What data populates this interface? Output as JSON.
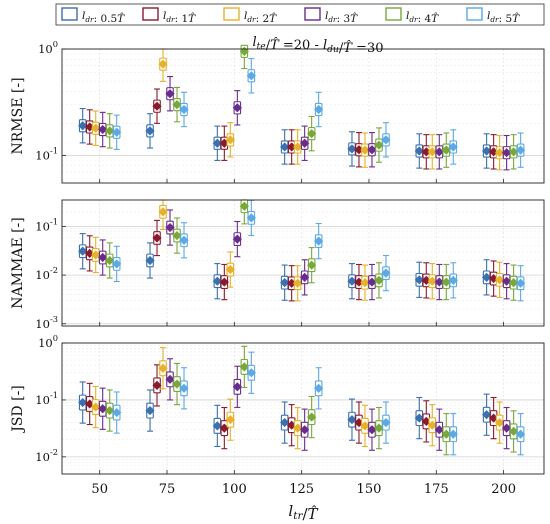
{
  "chart_data": {
    "type": "box",
    "title": "l_te/T̂ =20 - l_du/T̂ =30",
    "xlabel": "l_tr/T̂",
    "xticks": [
      "50",
      "75",
      "100",
      "125",
      "150",
      "175",
      "200"
    ],
    "x_values": [
      50,
      75,
      100,
      125,
      150,
      175,
      200
    ],
    "legend": {
      "placement": "top",
      "entries": [
        {
          "label": "l_dr: 0.5T̂",
          "color": "#3a6fb0"
        },
        {
          "label": "l_dr: 1T̂",
          "color": "#8b1a2e"
        },
        {
          "label": "l_dr: 2T̂",
          "color": "#e7b12a"
        },
        {
          "label": "l_dr: 3T̂",
          "color": "#6a2c8c"
        },
        {
          "label": "l_dr: 4T̂",
          "color": "#78a83a"
        },
        {
          "label": "l_dr: 5T̂",
          "color": "#5ca9e6"
        }
      ]
    },
    "log_scale_y": true,
    "grid": true,
    "panels": [
      {
        "ylabel": "NRMSE [-]",
        "ylim": [
          0.055,
          1.0
        ],
        "yticks": [
          {
            "v": 0.1,
            "label": "10^-1"
          },
          {
            "v": 1,
            "label": "10^0"
          }
        ],
        "series": [
          {
            "name": "l_dr: 0.5T̂",
            "medians": [
              0.19,
              0.17,
              0.13,
              0.12,
              0.115,
              0.11,
              0.11
            ]
          },
          {
            "name": "l_dr: 1T̂",
            "medians": [
              0.185,
              0.29,
              0.13,
              0.12,
              0.113,
              0.108,
              0.108
            ]
          },
          {
            "name": "l_dr: 2T̂",
            "medians": [
              0.18,
              0.72,
              0.14,
              0.12,
              0.112,
              0.108,
              0.106
            ]
          },
          {
            "name": "l_dr: 3T̂",
            "medians": [
              0.175,
              0.38,
              0.28,
              0.13,
              0.113,
              0.108,
              0.106
            ]
          },
          {
            "name": "l_dr: 4T̂",
            "medians": [
              0.17,
              0.3,
              0.95,
              0.16,
              0.125,
              0.112,
              0.108
            ]
          },
          {
            "name": "l_dr: 5T̂",
            "medians": [
              0.165,
              0.27,
              0.56,
              0.27,
              0.14,
              0.12,
              0.112
            ]
          }
        ]
      },
      {
        "ylabel": "NAMMAE [-]",
        "ylim": [
          0.0009,
          0.35
        ],
        "yticks": [
          {
            "v": 0.001,
            "label": "10^-3"
          },
          {
            "v": 0.01,
            "label": "10^-2"
          },
          {
            "v": 0.1,
            "label": "10^-1"
          }
        ],
        "series": [
          {
            "name": "l_dr: 0.5T̂",
            "medians": [
              0.031,
              0.02,
              0.0075,
              0.007,
              0.0075,
              0.008,
              0.009
            ]
          },
          {
            "name": "l_dr: 1T̂",
            "medians": [
              0.028,
              0.058,
              0.0072,
              0.0068,
              0.0072,
              0.0078,
              0.0085
            ]
          },
          {
            "name": "l_dr: 2T̂",
            "medians": [
              0.026,
              0.2,
              0.013,
              0.0068,
              0.007,
              0.0075,
              0.008
            ]
          },
          {
            "name": "l_dr: 3T̂",
            "medians": [
              0.023,
              0.095,
              0.055,
              0.009,
              0.0072,
              0.0072,
              0.0075
            ]
          },
          {
            "name": "l_dr: 4T̂",
            "medians": [
              0.02,
              0.065,
              0.26,
              0.016,
              0.0078,
              0.0072,
              0.007
            ]
          },
          {
            "name": "l_dr: 5T̂",
            "medians": [
              0.017,
              0.052,
              0.15,
              0.05,
              0.011,
              0.0078,
              0.0068
            ]
          }
        ]
      },
      {
        "ylabel": "JSD [-]",
        "ylim": [
          0.005,
          1.0
        ],
        "yticks": [
          {
            "v": 0.01,
            "label": "10^-2"
          },
          {
            "v": 0.1,
            "label": "10^-1"
          },
          {
            "v": 1,
            "label": "10^0"
          }
        ],
        "series": [
          {
            "name": "l_dr: 0.5T̂",
            "medians": [
              0.09,
              0.065,
              0.035,
              0.04,
              0.045,
              0.048,
              0.055
            ]
          },
          {
            "name": "l_dr: 1T̂",
            "medians": [
              0.085,
              0.18,
              0.032,
              0.036,
              0.04,
              0.042,
              0.048
            ]
          },
          {
            "name": "l_dr: 2T̂",
            "medians": [
              0.075,
              0.36,
              0.045,
              0.032,
              0.035,
              0.036,
              0.04
            ]
          },
          {
            "name": "l_dr: 3T̂",
            "medians": [
              0.07,
              0.23,
              0.17,
              0.03,
              0.03,
              0.03,
              0.032
            ]
          },
          {
            "name": "l_dr: 4T̂",
            "medians": [
              0.065,
              0.19,
              0.38,
              0.05,
              0.032,
              0.025,
              0.028
            ]
          },
          {
            "name": "l_dr: 5T̂",
            "medians": [
              0.06,
              0.16,
              0.3,
              0.16,
              0.04,
              0.025,
              0.025
            ]
          }
        ]
      }
    ]
  }
}
